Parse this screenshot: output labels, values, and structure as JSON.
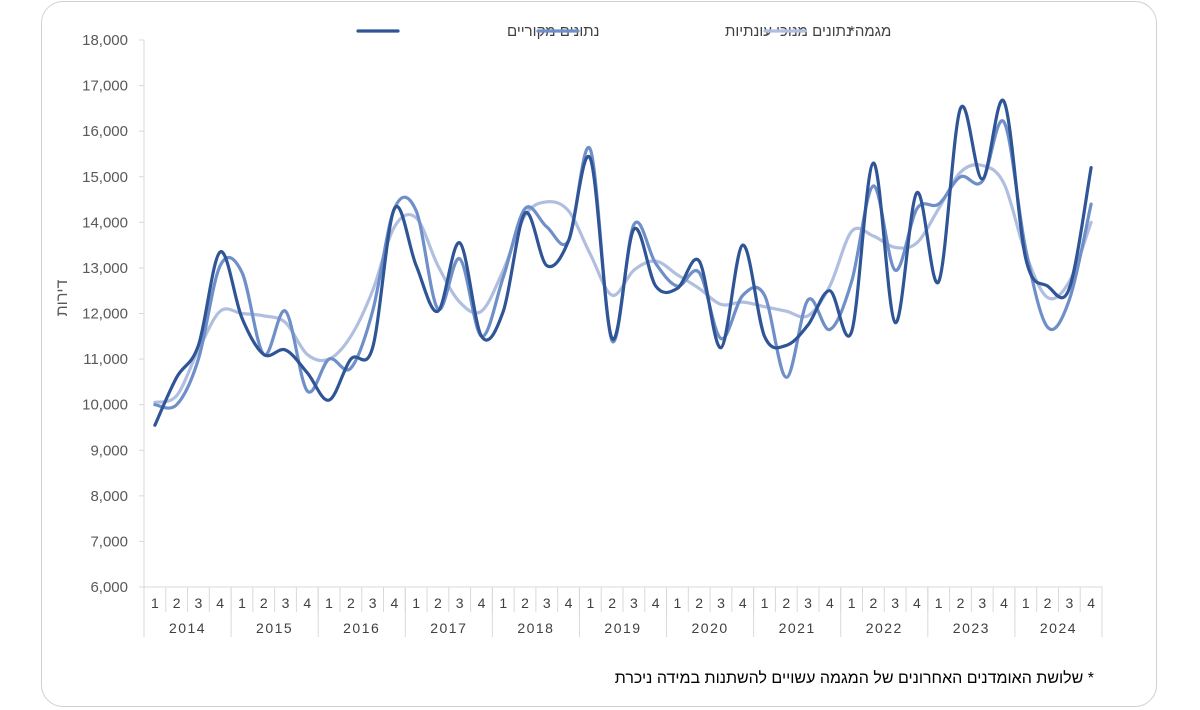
{
  "chart_data": {
    "type": "line",
    "ylabel": "דירות",
    "ylim": [
      6000,
      18000
    ],
    "yticks": [
      "6,000",
      "7,000",
      "8,000",
      "9,000",
      "10,000",
      "11,000",
      "12,000",
      "13,000",
      "14,000",
      "15,000",
      "16,000",
      "17,000",
      "18,000"
    ],
    "quarters": [
      "1",
      "2",
      "3",
      "4"
    ],
    "years": [
      "2014",
      "2015",
      "2016",
      "2017",
      "2018",
      "2019",
      "2020",
      "2021",
      "2022",
      "2023",
      "2024"
    ],
    "legend_position": "top",
    "series": [
      {
        "name": "נתונים מקוריים",
        "color": "#2f5597",
        "values": [
          9550,
          10600,
          11300,
          13350,
          11900,
          11100,
          11200,
          10700,
          10100,
          11000,
          11250,
          14300,
          13050,
          12050,
          13550,
          11500,
          12050,
          14200,
          13050,
          13600,
          15400,
          11450,
          13850,
          12600,
          12550,
          13150,
          11250,
          13500,
          11500,
          11300,
          11750,
          12500,
          11600,
          15300,
          11800,
          14650,
          12700,
          16500,
          14950,
          16650,
          13200,
          12600,
          12550,
          15200
        ]
      },
      {
        "name": "נתונים מנוכי עונתיות",
        "color": "#6f8fc9",
        "values": [
          10000,
          10000,
          11000,
          13050,
          12900,
          11100,
          12050,
          10300,
          11000,
          10800,
          12050,
          14300,
          14250,
          12100,
          13200,
          11500,
          12800,
          14300,
          13900,
          13600,
          15600,
          11400,
          13950,
          13100,
          12600,
          12900,
          11450,
          12400,
          12400,
          10600,
          12300,
          11650,
          12700,
          14800,
          12950,
          14300,
          14400,
          15000,
          14900,
          16200,
          13400,
          11700,
          12300,
          14400
        ]
      },
      {
        "name": "מגמה*",
        "color": "#b0bfe0",
        "values": [
          10050,
          10200,
          11200,
          12050,
          12000,
          11950,
          11800,
          11100,
          11000,
          11500,
          12500,
          13900,
          14100,
          13050,
          12250,
          12050,
          12950,
          14150,
          14450,
          14250,
          13300,
          12400,
          12950,
          13150,
          12850,
          12550,
          12200,
          12250,
          12150,
          12050,
          11950,
          12600,
          13800,
          13700,
          13450,
          13550,
          14300,
          15100,
          15250,
          14850,
          13300,
          12350,
          12700,
          14000
        ]
      }
    ]
  },
  "footnote": "* שלושת האומדנים האחרונים של המגמה עשויים להשתנות במידה ניכרת"
}
